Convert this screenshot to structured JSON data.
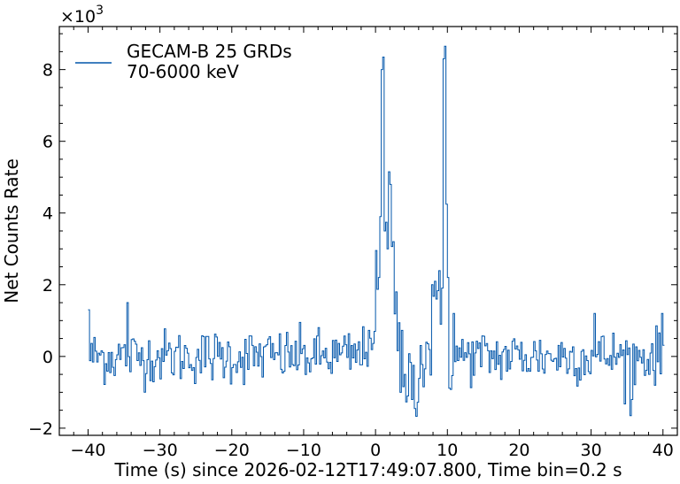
{
  "chart_data": {
    "type": "line",
    "xlabel": "Time (s) since 2026-02-12T17:49:07.800, Time bin=0.2 s",
    "ylabel": "Net Counts Rate",
    "y_multiplier_label": "×10",
    "y_multiplier_exponent": "3",
    "xlim": [
      -44,
      42
    ],
    "ylim": [
      -2200,
      9200
    ],
    "x_ticks": [
      -40,
      -30,
      -20,
      -10,
      0,
      10,
      20,
      30,
      40
    ],
    "x_tick_labels": [
      "−40",
      "−30",
      "−20",
      "−10",
      "0",
      "10",
      "20",
      "30",
      "40"
    ],
    "y_ticks": [
      -2000,
      0,
      2000,
      4000,
      6000,
      8000
    ],
    "y_tick_labels": [
      "−2",
      "0",
      "2",
      "4",
      "6",
      "8"
    ],
    "grid": false,
    "legend_position": "top-left",
    "series": [
      {
        "name_line1": "GECAM-B 25 GRDs",
        "name_line2": "70-6000 keV",
        "color": "#0055aa",
        "bin_width": 0.2,
        "x_range": [
          -40,
          40
        ],
        "background_level": 0,
        "noise_sigma": 380,
        "features": [
          {
            "time": -0.2,
            "value": 700
          },
          {
            "time": 0.4,
            "value": 2200
          },
          {
            "time": 0.6,
            "value": 3900
          },
          {
            "time": 0.8,
            "value": 8000
          },
          {
            "time": 1.0,
            "value": 8350
          },
          {
            "time": 1.2,
            "value": 3500
          },
          {
            "time": 1.6,
            "value": 3000
          },
          {
            "time": 1.8,
            "value": 5150
          },
          {
            "time": 2.0,
            "value": 4800
          },
          {
            "time": 2.4,
            "value": 3200
          },
          {
            "time": 2.8,
            "value": 1800
          },
          {
            "time": 3.4,
            "value": -1000
          },
          {
            "time": 4.0,
            "value": -500
          },
          {
            "time": 5.0,
            "value": -1200
          },
          {
            "time": 7.8,
            "value": 2000
          },
          {
            "time": 8.4,
            "value": 1600
          },
          {
            "time": 9.4,
            "value": 8300
          },
          {
            "time": 9.6,
            "value": 8650
          },
          {
            "time": 10.0,
            "value": 2200
          },
          {
            "time": 10.8,
            "value": 1200
          },
          {
            "time": 35.4,
            "value": -1650
          },
          {
            "time": 35.6,
            "value": -1200
          },
          {
            "time": 30.4,
            "value": 1200
          },
          {
            "time": -34.6,
            "value": 1500
          },
          {
            "time": -40,
            "value": 1300
          },
          {
            "time": 39.8,
            "value": 1200
          }
        ]
      }
    ]
  }
}
